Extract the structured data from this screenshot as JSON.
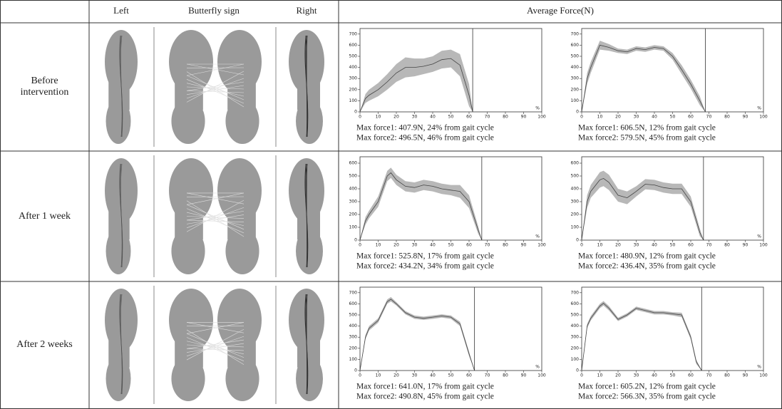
{
  "header": {
    "left": "Left",
    "butterfly": "Butterfly sign",
    "right": "Right",
    "force": "Average Force(N)"
  },
  "rows": [
    {
      "label": "Before intervention",
      "charts": [
        {
          "type": "line",
          "x": [
            0,
            3,
            5,
            10,
            15,
            20,
            25,
            30,
            35,
            40,
            45,
            50,
            55,
            60,
            62
          ],
          "values": [
            0,
            120,
            150,
            200,
            270,
            350,
            400,
            400,
            410,
            430,
            470,
            480,
            420,
            150,
            0
          ],
          "sd": [
            0,
            40,
            50,
            60,
            70,
            80,
            90,
            80,
            70,
            70,
            80,
            80,
            100,
            100,
            0
          ],
          "stance_end": 62,
          "xlim": [
            0,
            100
          ],
          "xticks": [
            0,
            10,
            20,
            30,
            40,
            50,
            60,
            70,
            80,
            90,
            100
          ],
          "ylim": [
            0,
            750
          ],
          "yticks": [
            0,
            100,
            200,
            300,
            400,
            500,
            600,
            700
          ],
          "x_label": "%",
          "captions": [
            "Max force1: 407.9N, 24% from gait cycle",
            "Max force2: 496.5N, 46% from gait cycle"
          ]
        },
        {
          "type": "line",
          "x": [
            0,
            3,
            5,
            10,
            15,
            20,
            25,
            30,
            35,
            40,
            45,
            50,
            55,
            60,
            65,
            68
          ],
          "values": [
            0,
            300,
            400,
            600,
            580,
            550,
            540,
            570,
            560,
            580,
            570,
            500,
            380,
            250,
            100,
            0
          ],
          "sd": [
            0,
            50,
            50,
            40,
            30,
            20,
            20,
            20,
            20,
            20,
            20,
            30,
            40,
            40,
            40,
            0
          ],
          "stance_end": 68,
          "xlim": [
            0,
            100
          ],
          "xticks": [
            0,
            10,
            20,
            30,
            40,
            50,
            60,
            70,
            80,
            90,
            100
          ],
          "ylim": [
            0,
            750
          ],
          "yticks": [
            0,
            100,
            200,
            300,
            400,
            500,
            600,
            700
          ],
          "x_label": "%",
          "captions": [
            "Max force1: 606.5N, 12% from gait cycle",
            "Max force2: 579.5N, 45% from gait cycle"
          ]
        }
      ]
    },
    {
      "label": "After 1 week",
      "charts": [
        {
          "type": "line",
          "x": [
            0,
            3,
            5,
            10,
            15,
            17,
            20,
            25,
            30,
            35,
            40,
            45,
            50,
            55,
            60,
            65,
            67
          ],
          "values": [
            0,
            150,
            200,
            300,
            500,
            525,
            470,
            420,
            410,
            430,
            420,
            400,
            390,
            380,
            300,
            80,
            0
          ],
          "sd": [
            0,
            30,
            30,
            40,
            40,
            40,
            40,
            40,
            40,
            40,
            40,
            40,
            40,
            50,
            50,
            30,
            0
          ],
          "stance_end": 67,
          "xlim": [
            0,
            100
          ],
          "xticks": [
            0,
            10,
            20,
            30,
            40,
            50,
            60,
            70,
            80,
            90,
            100
          ],
          "ylim": [
            0,
            650
          ],
          "yticks": [
            0,
            100,
            200,
            300,
            400,
            500,
            600
          ],
          "x_label": "%",
          "captions": [
            "Max force1: 525.8N, 17% from gait cycle",
            "Max force2: 434.2N, 34% from gait cycle"
          ]
        },
        {
          "type": "line",
          "x": [
            0,
            3,
            5,
            10,
            12,
            15,
            20,
            25,
            30,
            35,
            40,
            45,
            50,
            55,
            60,
            65,
            67
          ],
          "values": [
            0,
            300,
            380,
            470,
            481,
            450,
            350,
            330,
            380,
            436,
            430,
            410,
            400,
            400,
            300,
            60,
            0
          ],
          "sd": [
            0,
            50,
            50,
            60,
            60,
            60,
            50,
            50,
            40,
            40,
            40,
            40,
            40,
            40,
            40,
            30,
            0
          ],
          "stance_end": 67,
          "xlim": [
            0,
            100
          ],
          "xticks": [
            0,
            10,
            20,
            30,
            40,
            50,
            60,
            70,
            80,
            90,
            100
          ],
          "ylim": [
            0,
            650
          ],
          "yticks": [
            0,
            100,
            200,
            300,
            400,
            500,
            600
          ],
          "x_label": "%",
          "captions": [
            "Max force1: 480.9N, 12% from gait cycle",
            "Max force2: 436.4N, 35% from gait cycle"
          ]
        }
      ]
    },
    {
      "label": "After 2 weeks",
      "charts": [
        {
          "type": "line",
          "x": [
            0,
            3,
            5,
            10,
            15,
            17,
            20,
            25,
            30,
            35,
            40,
            45,
            50,
            55,
            60,
            63
          ],
          "values": [
            0,
            300,
            380,
            450,
            620,
            641,
            600,
            520,
            480,
            470,
            480,
            491,
            480,
            420,
            150,
            0
          ],
          "sd": [
            0,
            20,
            20,
            20,
            20,
            20,
            15,
            15,
            15,
            15,
            15,
            15,
            15,
            20,
            20,
            0
          ],
          "stance_end": 63,
          "xlim": [
            0,
            100
          ],
          "xticks": [
            0,
            10,
            20,
            30,
            40,
            50,
            60,
            70,
            80,
            90,
            100
          ],
          "ylim": [
            0,
            750
          ],
          "yticks": [
            0,
            100,
            200,
            300,
            400,
            500,
            600,
            700
          ],
          "x_label": "%",
          "captions": [
            "Max force1: 641.0N, 17% from gait cycle",
            "Max force2: 490.8N, 45% from gait cycle"
          ]
        },
        {
          "type": "line",
          "x": [
            0,
            3,
            5,
            10,
            12,
            15,
            20,
            25,
            30,
            35,
            40,
            45,
            50,
            55,
            60,
            63,
            66
          ],
          "values": [
            0,
            400,
            470,
            580,
            605,
            560,
            460,
            500,
            560,
            540,
            520,
            520,
            510,
            500,
            300,
            80,
            0
          ],
          "sd": [
            0,
            20,
            20,
            20,
            20,
            20,
            15,
            15,
            15,
            15,
            15,
            15,
            15,
            20,
            20,
            20,
            0
          ],
          "stance_end": 66,
          "xlim": [
            0,
            100
          ],
          "xticks": [
            0,
            10,
            20,
            30,
            40,
            50,
            60,
            70,
            80,
            90,
            100
          ],
          "ylim": [
            0,
            750
          ],
          "yticks": [
            0,
            100,
            200,
            300,
            400,
            500,
            600,
            700
          ],
          "x_label": "%",
          "captions": [
            "Max force1: 605.2N, 12% from gait cycle",
            "Max force2: 566.3N, 35% from gait cycle"
          ]
        }
      ]
    }
  ]
}
